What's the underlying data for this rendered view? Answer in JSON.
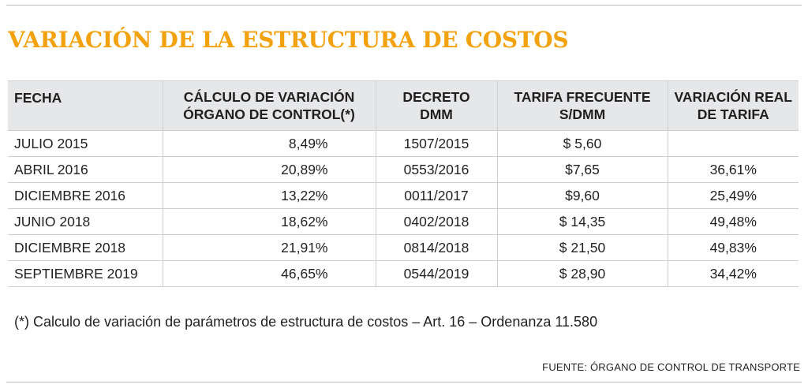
{
  "title": "VARIACIÓN DE LA ESTRUCTURA DE COSTOS",
  "table": {
    "headers": {
      "fecha": "FECHA",
      "calculo": [
        "CÁLCULO DE VARIACIÓN",
        "ÓRGANO DE CONTROL(*)"
      ],
      "decreto": [
        "DECRETO",
        "DMM"
      ],
      "tarifa": [
        "TARIFA FRECUENTE",
        "S/DMM"
      ],
      "variacion": [
        "VARIACIÓN REAL",
        "DE TARIFA"
      ]
    },
    "rows": [
      {
        "fecha": "JULIO 2015",
        "calculo": "8,49%",
        "decreto": "1507/2015",
        "tarifa": "$ 5,60",
        "variacion": ""
      },
      {
        "fecha": "ABRIL 2016",
        "calculo": "20,89%",
        "decreto": "0553/2016",
        "tarifa": "$7,65",
        "variacion": "36,61%"
      },
      {
        "fecha": "DICIEMBRE 2016",
        "calculo": "13,22%",
        "decreto": "0011/2017",
        "tarifa": "$9,60",
        "variacion": "25,49%"
      },
      {
        "fecha": "JUNIO 2018",
        "calculo": "18,62%",
        "decreto": "0402/2018",
        "tarifa": "$ 14,35",
        "variacion": "49,48%"
      },
      {
        "fecha": "DICIEMBRE 2018",
        "calculo": "21,91%",
        "decreto": "0814/2018",
        "tarifa": "$ 21,50",
        "variacion": "49,83%"
      },
      {
        "fecha": "SEPTIEMBRE 2019",
        "calculo": "46,65%",
        "decreto": "0544/2019",
        "tarifa": "$ 28,90",
        "variacion": "34,42%"
      }
    ]
  },
  "footnote": "(*) Calculo de variación de parámetros de estructura de costos – Art. 16 – Ordenanza 11.580",
  "source": "FUENTE: ÓRGANO DE CONTROL DE TRANSPORTE",
  "colors": {
    "title": "#f2a20f",
    "header_bg": "#e6e7e8",
    "text": "#231f20",
    "rule": "#cfcfcf"
  }
}
